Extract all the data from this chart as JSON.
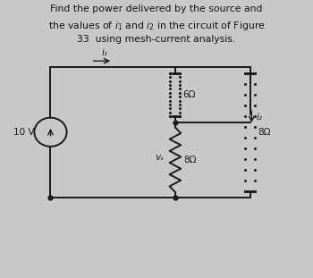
{
  "bg_color": "#c8c8c8",
  "text_color": "#111111",
  "source_label": "10 V",
  "r1_label": "6Ω",
  "r2_label": "8Ω",
  "r3_label": "8Ω",
  "i1_label": "i₁",
  "i2_label": "i₂",
  "vs_label": "vₛ",
  "line_color": "#1a1a1a",
  "lw": 1.4
}
